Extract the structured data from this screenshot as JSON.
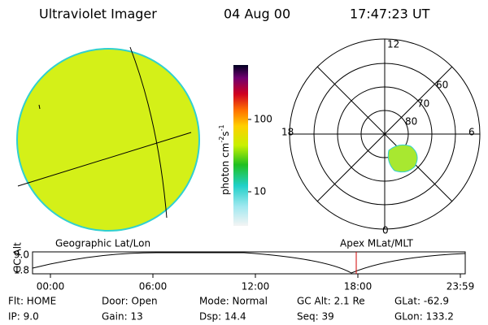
{
  "header": {
    "title": "Ultraviolet Imager",
    "date": "04 Aug 00",
    "time": "17:47:23 UT"
  },
  "colorbar": {
    "label": "photon cm",
    "exp1": "-2",
    "unit2": "s",
    "exp2": "-1",
    "ticks": [
      "100",
      "10"
    ]
  },
  "polar": {
    "lat_labels": [
      "80",
      "70",
      "60"
    ],
    "mlt_labels": [
      "12",
      "6",
      "0",
      "18"
    ]
  },
  "timeline": {
    "y_label": "GC Alt",
    "y_ticks": [
      "9.0",
      "1.8"
    ],
    "left_title": "Geographic Lat/Lon",
    "right_title": "Apex MLat/MLT",
    "x_ticks": [
      "00:00",
      "06:00",
      "12:00",
      "18:00",
      "23:59"
    ]
  },
  "status": {
    "row1": [
      "Flt: HOME",
      "Door: Open",
      "Mode: Normal",
      "GC Alt: 2.1 Re",
      "GLat: -62.9"
    ],
    "row2": [
      "IP: 9.0",
      "Gain: 13",
      "Dsp: 14.4",
      "Seq: 39",
      "GLon: 133.2"
    ]
  }
}
